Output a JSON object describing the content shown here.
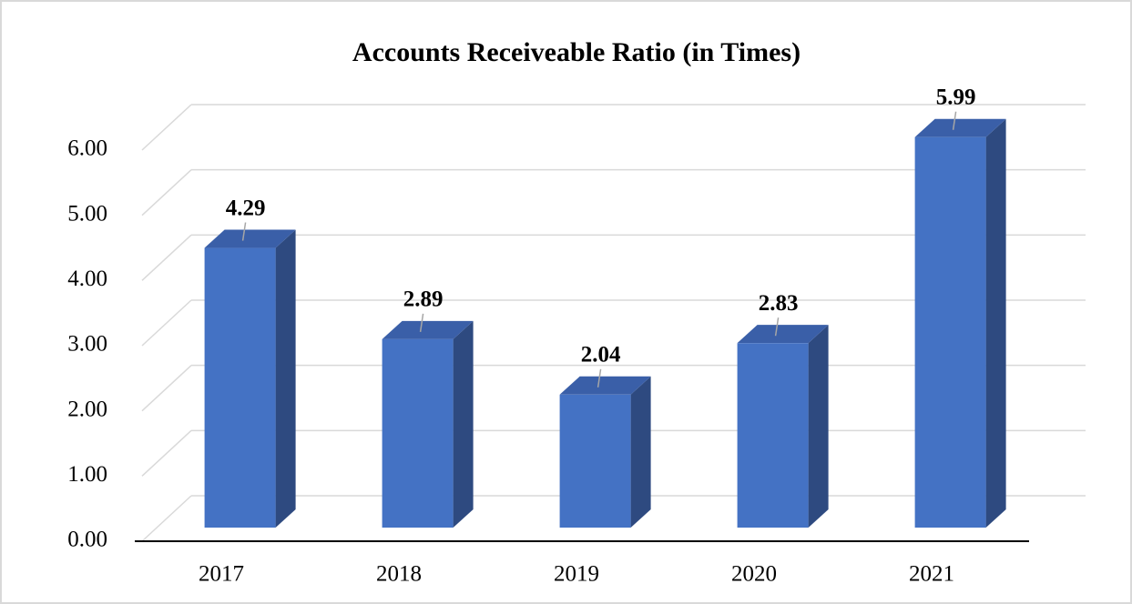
{
  "chart_data": {
    "type": "bar3d",
    "title": "Accounts Receiveable Ratio (in Times)",
    "categories": [
      "2017",
      "2018",
      "2019",
      "2020",
      "2021"
    ],
    "values": [
      4.29,
      2.89,
      2.04,
      2.83,
      5.99
    ],
    "color": "#4472c4",
    "ylim": [
      0,
      6
    ],
    "yticks": [
      {
        "value": 0,
        "label": "0.00"
      },
      {
        "value": 1,
        "label": "1.00"
      },
      {
        "value": 2,
        "label": "2.00"
      },
      {
        "value": 3,
        "label": "3.00"
      },
      {
        "value": 4,
        "label": "4.00"
      },
      {
        "value": 5,
        "label": "5.00"
      },
      {
        "value": 6,
        "label": "6.00"
      }
    ],
    "grid": true
  }
}
